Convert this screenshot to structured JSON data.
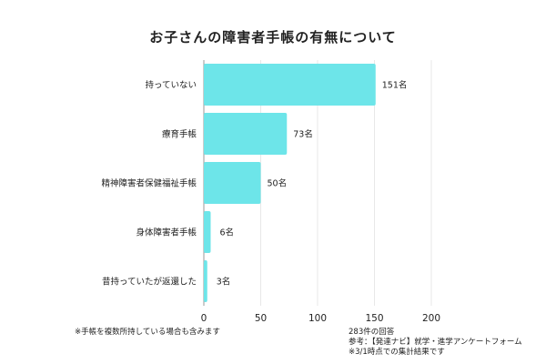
{
  "chart_data": {
    "type": "bar",
    "orientation": "horizontal",
    "title": "お子さんの障害者手帳の有無について",
    "categories": [
      "持っていない",
      "療育手帳",
      "精神障害者保健福祉手帳",
      "身体障害者手帳",
      "昔持っていたが返還した"
    ],
    "values": [
      151,
      73,
      50,
      6,
      3
    ],
    "value_labels": [
      "151名",
      "73名",
      "50名",
      "6名",
      "3名"
    ],
    "x_ticks": [
      0,
      50,
      100,
      150,
      200
    ],
    "xlim": [
      0,
      200
    ],
    "grid": "vertical",
    "bar_color": "#6de5e9"
  },
  "notes": {
    "left": "※手帳を複数所持している場合も含みます",
    "right": [
      "283件の回答",
      "参考：【発達ナビ】就学・進学アンケートフォーム",
      "※3/1時点での集計結果です"
    ]
  }
}
